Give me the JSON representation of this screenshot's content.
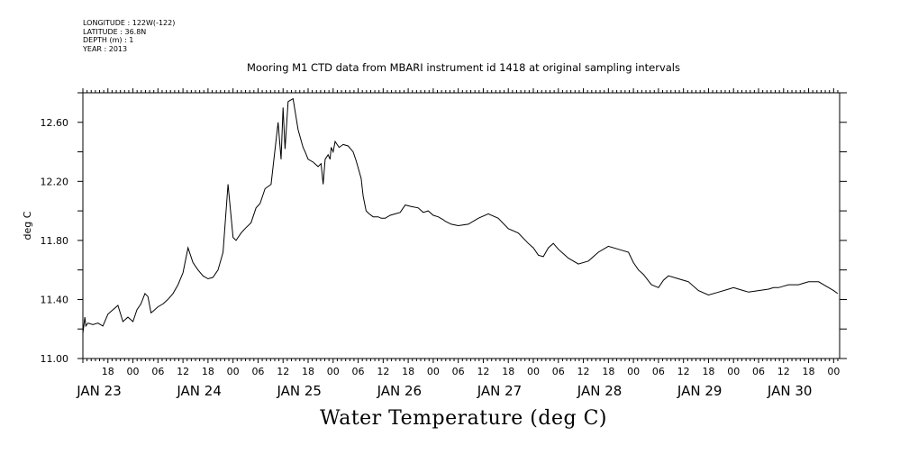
{
  "meta": {
    "longitude": "LONGITUDE : 122W(-122)",
    "latitude": "LATITUDE : 36.8N",
    "depth": "DEPTH (m) : 1",
    "year": "YEAR : 2013"
  },
  "chart_data": {
    "type": "line",
    "title": "Mooring M1 CTD data from MBARI instrument id 1418 at original sampling intervals",
    "ylabel": "deg C",
    "bottom_title": "Water Temperature (deg C)",
    "ylim": [
      11.0,
      12.8
    ],
    "xlim": [
      22.5,
      30.06
    ],
    "y_ticks": [
      11.0,
      11.4,
      11.8,
      12.2,
      12.6
    ],
    "y_tick_labels": [
      "11.00",
      "11.40",
      "11.80",
      "12.20",
      "12.60"
    ],
    "hour_ticks": [
      {
        "x": 22.75,
        "label": "18"
      },
      {
        "x": 23.0,
        "label": "00"
      },
      {
        "x": 23.25,
        "label": "06"
      },
      {
        "x": 23.5,
        "label": "12"
      },
      {
        "x": 23.75,
        "label": "18"
      },
      {
        "x": 24.0,
        "label": "00"
      },
      {
        "x": 24.25,
        "label": "06"
      },
      {
        "x": 24.5,
        "label": "12"
      },
      {
        "x": 24.75,
        "label": "18"
      },
      {
        "x": 25.0,
        "label": "00"
      },
      {
        "x": 25.25,
        "label": "06"
      },
      {
        "x": 25.5,
        "label": "12"
      },
      {
        "x": 25.75,
        "label": "18"
      },
      {
        "x": 26.0,
        "label": "00"
      },
      {
        "x": 26.25,
        "label": "06"
      },
      {
        "x": 26.5,
        "label": "12"
      },
      {
        "x": 26.75,
        "label": "18"
      },
      {
        "x": 27.0,
        "label": "00"
      },
      {
        "x": 27.25,
        "label": "06"
      },
      {
        "x": 27.5,
        "label": "12"
      },
      {
        "x": 27.75,
        "label": "18"
      },
      {
        "x": 28.0,
        "label": "00"
      },
      {
        "x": 28.25,
        "label": "06"
      },
      {
        "x": 28.5,
        "label": "12"
      },
      {
        "x": 28.75,
        "label": "18"
      },
      {
        "x": 29.0,
        "label": "00"
      },
      {
        "x": 29.25,
        "label": "06"
      },
      {
        "x": 29.5,
        "label": "12"
      },
      {
        "x": 29.75,
        "label": "18"
      },
      {
        "x": 30.0,
        "label": "00"
      }
    ],
    "date_labels": [
      {
        "x": 22.5,
        "label": "JAN 23"
      },
      {
        "x": 23.5,
        "label": "JAN 24"
      },
      {
        "x": 24.5,
        "label": "JAN 25"
      },
      {
        "x": 25.5,
        "label": "JAN 26"
      },
      {
        "x": 26.5,
        "label": "JAN 27"
      },
      {
        "x": 27.5,
        "label": "JAN 28"
      },
      {
        "x": 28.5,
        "label": "JAN 29"
      },
      {
        "x": 29.4,
        "label": "JAN 30"
      }
    ],
    "series": [
      {
        "color": "#000000",
        "x": [
          22.5,
          22.52,
          22.53,
          22.55,
          22.6,
          22.65,
          22.7,
          22.75,
          22.8,
          22.85,
          22.9,
          22.95,
          23.0,
          23.04,
          23.08,
          23.12,
          23.15,
          23.18,
          23.2,
          23.25,
          23.3,
          23.35,
          23.4,
          23.45,
          23.5,
          23.55,
          23.6,
          23.65,
          23.7,
          23.75,
          23.8,
          23.85,
          23.9,
          23.95,
          24.0,
          24.03,
          24.08,
          24.12,
          24.18,
          24.23,
          24.27,
          24.32,
          24.38,
          24.45,
          24.48,
          24.5,
          24.52,
          24.55,
          24.6,
          24.65,
          24.7,
          24.72,
          24.75,
          24.8,
          24.85,
          24.88,
          24.9,
          24.92,
          24.95,
          24.97,
          24.98,
          25.0,
          25.02,
          25.04,
          25.06,
          25.08,
          25.1,
          25.15,
          25.2,
          25.23,
          25.28,
          25.3,
          25.33,
          25.36,
          25.4,
          25.45,
          25.48,
          25.52,
          25.57,
          25.62,
          25.67,
          25.72,
          25.78,
          25.85,
          25.9,
          25.95,
          26.0,
          26.05,
          26.1,
          26.12,
          26.18,
          26.25,
          26.35,
          26.45,
          26.55,
          26.65,
          26.75,
          26.85,
          26.95,
          27.0,
          27.05,
          27.1,
          27.15,
          27.2,
          27.25,
          27.3,
          27.35,
          27.45,
          27.55,
          27.65,
          27.75,
          27.85,
          27.95,
          28.0,
          28.05,
          28.1,
          28.18,
          28.25,
          28.3,
          28.35,
          28.45,
          28.55,
          28.65,
          28.75,
          28.85,
          28.95,
          29.0,
          29.05,
          29.1,
          29.15,
          29.25,
          29.35,
          29.4,
          29.45,
          29.5,
          29.55,
          29.6,
          29.65,
          29.7,
          29.75,
          29.8,
          29.85,
          29.9,
          29.95,
          30.0,
          30.04
        ],
        "y": [
          11.17,
          11.28,
          11.22,
          11.24,
          11.23,
          11.24,
          11.22,
          11.3,
          11.33,
          11.36,
          11.25,
          11.28,
          11.25,
          11.33,
          11.37,
          11.44,
          11.42,
          11.31,
          11.32,
          11.35,
          11.37,
          11.4,
          11.44,
          11.5,
          11.58,
          11.75,
          11.65,
          11.6,
          11.56,
          11.54,
          11.55,
          11.6,
          11.72,
          12.18,
          11.82,
          11.8,
          11.85,
          11.88,
          11.92,
          12.02,
          12.05,
          12.15,
          12.18,
          12.6,
          12.35,
          12.7,
          12.42,
          12.74,
          12.76,
          12.55,
          12.43,
          12.4,
          12.35,
          12.33,
          12.3,
          12.32,
          12.18,
          12.35,
          12.38,
          12.35,
          12.43,
          12.4,
          12.47,
          12.45,
          12.43,
          12.44,
          12.45,
          12.44,
          12.4,
          12.34,
          12.22,
          12.1,
          12.0,
          11.98,
          11.96,
          11.96,
          11.95,
          11.95,
          11.97,
          11.98,
          11.99,
          12.04,
          12.03,
          12.02,
          11.99,
          12.0,
          11.97,
          11.96,
          11.94,
          11.93,
          11.91,
          11.9,
          11.91,
          11.95,
          11.98,
          11.95,
          11.88,
          11.85,
          11.78,
          11.75,
          11.7,
          11.69,
          11.75,
          11.78,
          11.74,
          11.71,
          11.68,
          11.64,
          11.66,
          11.72,
          11.76,
          11.74,
          11.72,
          11.65,
          11.6,
          11.57,
          11.5,
          11.48,
          11.53,
          11.56,
          11.54,
          11.52,
          11.46,
          11.43,
          11.45,
          11.47,
          11.48,
          11.47,
          11.46,
          11.45,
          11.46,
          11.47,
          11.48,
          11.48,
          11.49,
          11.5,
          11.5,
          11.5,
          11.51,
          11.52,
          11.52,
          11.52,
          11.5,
          11.48,
          11.46,
          11.44
        ]
      }
    ],
    "grid": false,
    "legend": "none"
  }
}
